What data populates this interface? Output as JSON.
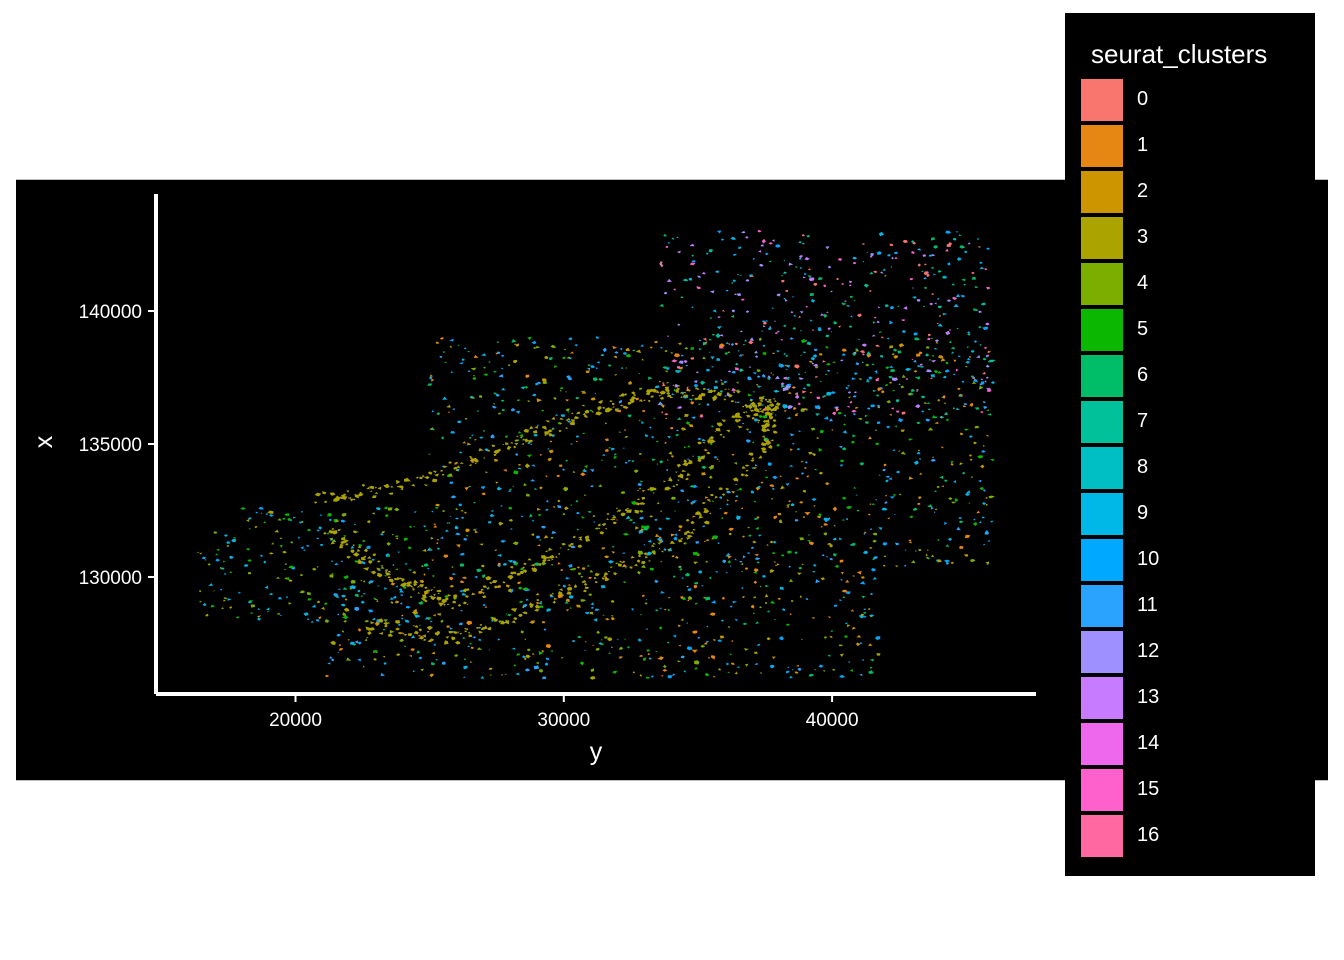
{
  "chart_data": {
    "type": "scatter",
    "xlabel": "y",
    "ylabel": "x",
    "x_ticks": [
      20000,
      30000,
      40000
    ],
    "x_tick_labels": [
      "20000",
      "30000",
      "40000"
    ],
    "y_ticks": [
      130000,
      135000,
      140000
    ],
    "y_tick_labels": [
      "130000",
      "135000",
      "140000"
    ],
    "xlim": [
      14800,
      47600
    ],
    "ylim": [
      125600,
      144400
    ],
    "background": "#000000",
    "legend": {
      "title": "seurat_clusters",
      "placement": "right",
      "entries": [
        {
          "label": "0",
          "color": "#F8766D"
        },
        {
          "label": "1",
          "color": "#E68613"
        },
        {
          "label": "2",
          "color": "#CD9600"
        },
        {
          "label": "3",
          "color": "#ABA300"
        },
        {
          "label": "4",
          "color": "#7CAE00"
        },
        {
          "label": "5",
          "color": "#0CB702"
        },
        {
          "label": "6",
          "color": "#00BE67"
        },
        {
          "label": "7",
          "color": "#00C19A"
        },
        {
          "label": "8",
          "color": "#00BFC4"
        },
        {
          "label": "9",
          "color": "#00B8E7"
        },
        {
          "label": "10",
          "color": "#00A9FF"
        },
        {
          "label": "11",
          "color": "#29A3FF"
        },
        {
          "label": "12",
          "color": "#9E91FF"
        },
        {
          "label": "13",
          "color": "#C77CFF"
        },
        {
          "label": "14",
          "color": "#ED68ED"
        },
        {
          "label": "15",
          "color": "#FF61CC"
        },
        {
          "label": "16",
          "color": "#FF68A1"
        }
      ]
    },
    "regions": [
      {
        "kind": "tissue-block",
        "y_range": [
          16300,
          25200
        ],
        "x_range": [
          128300,
          132600
        ],
        "clusters": [
          3,
          4,
          5,
          9,
          10
        ]
      },
      {
        "kind": "tissue-block",
        "y_range": [
          20800,
          41800
        ],
        "x_range": [
          126200,
          130600
        ],
        "clusters": [
          1,
          2,
          3,
          4,
          5,
          6,
          9,
          10,
          11
        ]
      },
      {
        "kind": "tissue-block",
        "y_range": [
          25000,
          46000
        ],
        "x_range": [
          130400,
          139000
        ],
        "clusters": [
          1,
          2,
          3,
          4,
          5,
          6,
          9,
          10,
          11
        ]
      },
      {
        "kind": "tissue-block",
        "y_range": [
          33600,
          46000
        ],
        "x_range": [
          136000,
          143000
        ],
        "clusters": [
          0,
          6,
          7,
          9,
          10,
          12,
          13,
          15
        ]
      },
      {
        "kind": "band",
        "path": [
          [
            21200,
            131800
          ],
          [
            23500,
            130000
          ],
          [
            26000,
            129000
          ],
          [
            30000,
            131000
          ],
          [
            34000,
            133500
          ],
          [
            36500,
            136200
          ],
          [
            37800,
            136600
          ],
          [
            37600,
            135000
          ],
          [
            34500,
            131500
          ],
          [
            30000,
            129300
          ],
          [
            26000,
            127700
          ],
          [
            22500,
            128200
          ]
        ],
        "cluster": 3
      },
      {
        "kind": "band",
        "path": [
          [
            21000,
            133000
          ],
          [
            24000,
            133400
          ],
          [
            28000,
            135000
          ],
          [
            31000,
            136300
          ],
          [
            34000,
            137000
          ],
          [
            36500,
            136800
          ]
        ],
        "cluster": 3
      }
    ]
  }
}
